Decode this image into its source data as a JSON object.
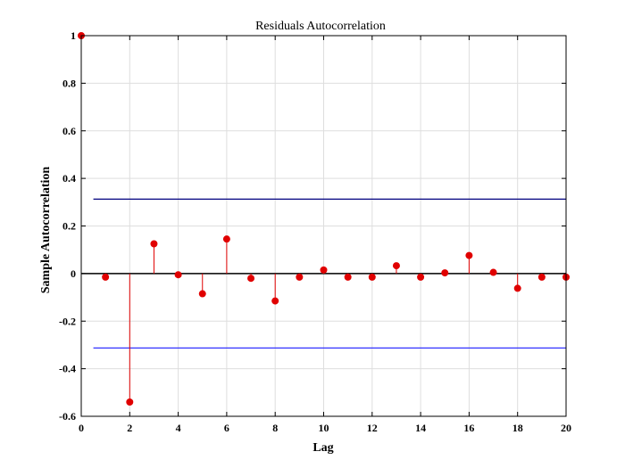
{
  "chart_data": {
    "type": "stem",
    "title": "Residuals Autocorrelation",
    "xlabel": "Lag",
    "ylabel": "Sample Autocorrelation",
    "xlim": [
      0,
      20
    ],
    "ylim": [
      -0.6,
      1
    ],
    "xticks": [
      0,
      2,
      4,
      6,
      8,
      10,
      12,
      14,
      16,
      18,
      20
    ],
    "yticks": [
      -0.6,
      -0.4,
      -0.2,
      0,
      0.2,
      0.4,
      0.6,
      0.8,
      1
    ],
    "ytick_labels": [
      "-0.6",
      "-0.4",
      "-0.2",
      "0",
      "0.2",
      "0.4",
      "0.6",
      "0.8",
      "1"
    ],
    "grid": true,
    "series": [
      {
        "x": [
          0,
          1,
          2,
          3,
          4,
          5,
          6,
          7,
          8,
          9,
          10,
          11,
          12,
          13,
          14,
          15,
          16,
          17,
          18,
          19,
          20
        ],
        "values": [
          1,
          -0.015,
          -0.54,
          0.125,
          -0.005,
          -0.085,
          0.145,
          -0.02,
          -0.115,
          -0.015,
          0.015,
          -0.015,
          -0.015,
          0.033,
          -0.015,
          0.003,
          0.076,
          0.005,
          -0.062,
          -0.015,
          -0.015
        ],
        "color": "#e00000"
      }
    ],
    "confidence_bounds": {
      "upper": 0.313,
      "lower": -0.313,
      "x_start": 0.5,
      "upper_color": "#00007f",
      "lower_color": "#3333ff"
    },
    "zero_line_color": "#000000"
  }
}
